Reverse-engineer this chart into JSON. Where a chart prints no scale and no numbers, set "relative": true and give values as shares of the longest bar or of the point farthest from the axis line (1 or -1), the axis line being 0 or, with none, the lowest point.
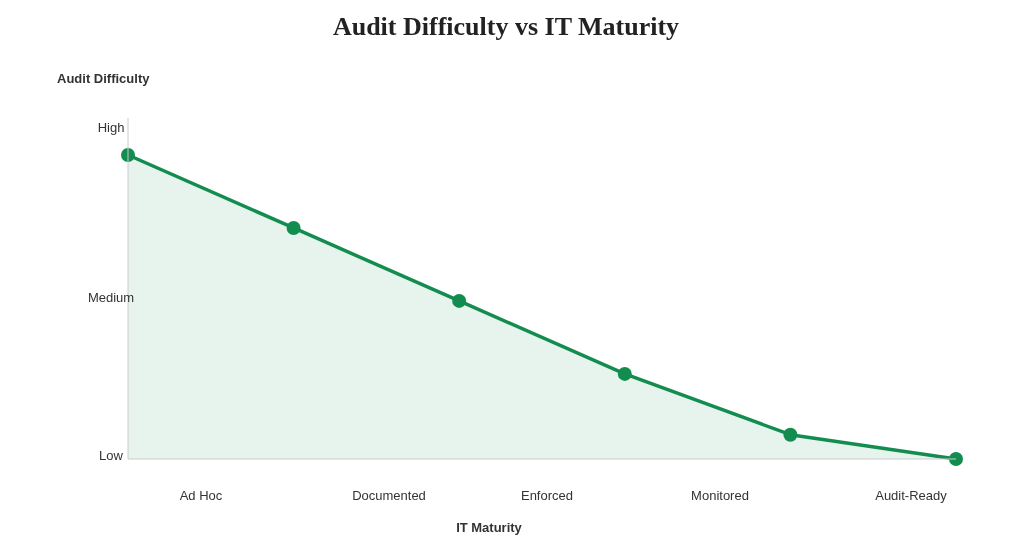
{
  "chart_data": {
    "type": "area",
    "title": "Audit Difficulty vs IT Maturity",
    "xlabel": "IT Maturity",
    "categories": [
      null,
      null,
      null,
      null,
      null,
      null
    ],
    "relative": true,
    "series": [
      {
        "color": "#138d4f",
        "values": [
          1,
          0.76,
          0.52,
          0.28,
          0.08,
          0
        ]
      }
    ],
    "annotations": [
      "High",
      "Medium",
      "Low",
      "Ad Hoc",
      "Documented",
      "Enforced",
      "Monitored",
      "Audit-Ready",
      "Audit Difficulty"
    ],
    "marker": "circle",
    "line_style": "solid",
    "grid": false
  }
}
